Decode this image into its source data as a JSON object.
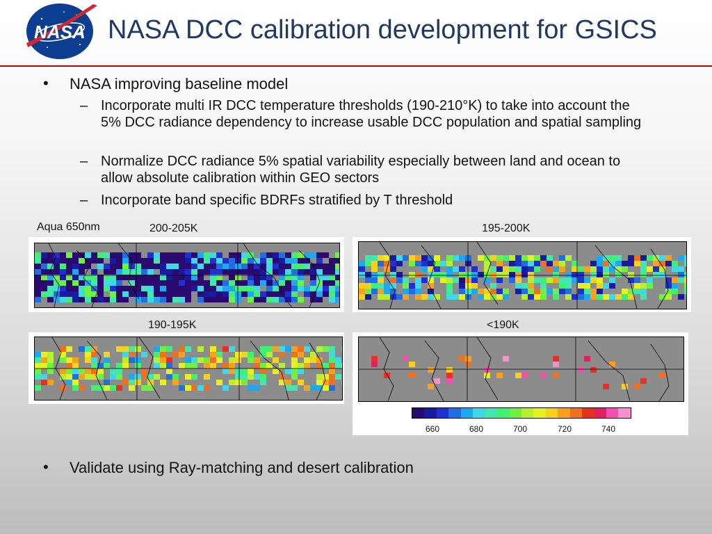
{
  "header": {
    "title": "NASA DCC calibration development for GSICS",
    "logo_text": "NASA"
  },
  "body": {
    "bullet1": "NASA improving baseline model",
    "sub1": "Incorporate multi IR DCC temperature thresholds (190-210°K) to take into account the 5% DCC radiance dependency to increase usable DCC population and spatial sampling",
    "sub2": "Normalize DCC radiance 5% spatial variability especially between land and ocean to allow absolute calibration within GEO sectors",
    "sub3": "Incorporate band specific BDRFs stratified by T threshold",
    "bullet2": "Validate using Ray-matching and desert calibration",
    "bullet_glyph": "•",
    "dash_glyph": "–"
  },
  "figure": {
    "product_label": "Aqua 650nm",
    "panels": [
      {
        "label": "200-205K"
      },
      {
        "label": "195-200K"
      },
      {
        "label": "190-195K"
      },
      {
        "label": "<190K"
      }
    ],
    "colorbar": {
      "ticks": [
        "660",
        "680",
        "700",
        "720",
        "740"
      ],
      "colors": [
        "#2a0a6e",
        "#1a1aa0",
        "#2030d0",
        "#1f6fe0",
        "#1ea8f0",
        "#3fd8e8",
        "#40e8b0",
        "#40f070",
        "#70f040",
        "#b8f030",
        "#e8f020",
        "#f8d020",
        "#f8a020",
        "#f07020",
        "#e83020",
        "#e02060",
        "#f050b0",
        "#f890d0"
      ]
    }
  }
}
